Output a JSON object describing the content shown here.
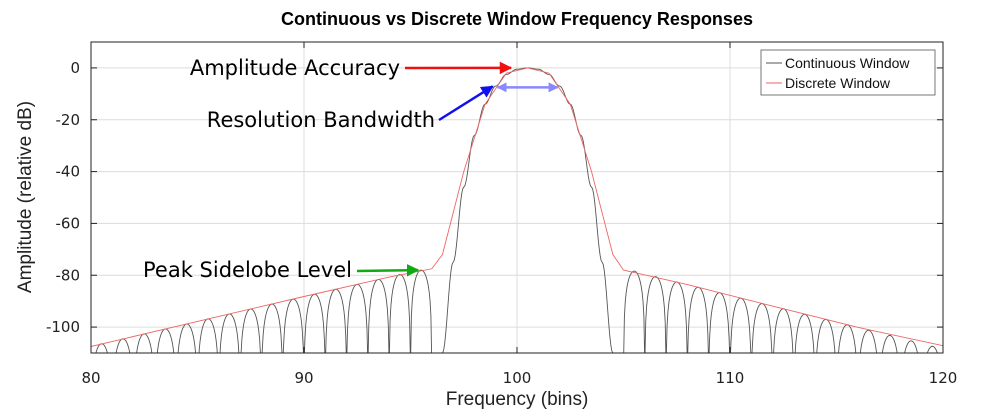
{
  "chart_data": {
    "type": "line",
    "title": "Continuous vs Discrete Window Frequency Responses",
    "xlabel": "Frequency (bins)",
    "ylabel": "Amplitude (relative dB)",
    "xlim": [
      80,
      120
    ],
    "ylim": [
      -110,
      10
    ],
    "xticks": [
      80,
      90,
      100,
      110,
      120
    ],
    "yticks": [
      0,
      -20,
      -40,
      -60,
      -80,
      -100
    ],
    "grid": true,
    "legend_position": "top-right",
    "series": [
      {
        "name": "Continuous Window",
        "color": "#555555",
        "description_points": {
          "x": [
            96.5,
            97.0,
            97.5,
            98.0,
            98.5,
            99.0,
            99.5,
            100.0,
            100.5,
            101.0,
            101.5,
            102.0,
            102.5,
            103.0,
            103.5,
            104.0,
            104.5
          ],
          "y": [
            -110,
            -75,
            -46,
            -26,
            -14,
            -7,
            -2.5,
            -0.5,
            0,
            -0.5,
            -2.5,
            -7,
            -14,
            -26,
            -46,
            -75,
            -110
          ]
        },
        "sidelobe_peaks": {
          "x": [
            80.5,
            81.5,
            82.5,
            83.5,
            84.5,
            85.5,
            86.5,
            87.5,
            88.5,
            89.5,
            90.5,
            91.5,
            92.5,
            93.5,
            94.5,
            95.5,
            105.5,
            106.5,
            107.5,
            108.5,
            109.5,
            110.5,
            111.5,
            112.5,
            113.5,
            114.5,
            115.5,
            116.5,
            117.5,
            118.5,
            119.5
          ],
          "y": [
            -106.4,
            -104.5,
            -102.6,
            -100.7,
            -98.8,
            -96.8,
            -94.9,
            -93.0,
            -91.1,
            -89.2,
            -87.3,
            -85.4,
            -83.5,
            -81.6,
            -79.7,
            -78.0,
            -78.4,
            -80.5,
            -82.6,
            -84.6,
            -86.7,
            -88.8,
            -90.9,
            -92.9,
            -95.0,
            -97.0,
            -99.1,
            -101.2,
            -103.2,
            -105.3,
            -107.4
          ]
        }
      },
      {
        "name": "Discrete Window",
        "color": "#ee6666",
        "x": [
          80.0,
          85.0,
          90.0,
          94.0,
          96.0,
          96.5,
          97.5,
          98.5,
          99.5,
          100.5,
          101.5,
          102.5,
          103.5,
          104.5,
          105.0,
          108.0,
          112.0,
          116.0,
          120.0
        ],
        "y": [
          -107.5,
          -97.8,
          -88.2,
          -80.7,
          -77.5,
          -72.0,
          -40.0,
          -14.0,
          -2.0,
          0.0,
          -2.0,
          -14.0,
          -40.0,
          -72.0,
          -78.0,
          -83.6,
          -91.9,
          -100.1,
          -107.2
        ]
      }
    ],
    "annotations": [
      {
        "text": "Amplitude Accuracy",
        "arrow_color": "#ee1111",
        "points_to": [
          100.0,
          0.0
        ]
      },
      {
        "text": "Resolution Bandwidth",
        "arrow_color": "#1111ee",
        "points_to": [
          99.0,
          -7.5
        ]
      },
      {
        "text": "Peak Sidelobe Level",
        "arrow_color": "#11aa11",
        "points_to": [
          95.5,
          -78.0
        ]
      }
    ],
    "bandwidth_marker": {
      "x": [
        99.0,
        102.0
      ],
      "y": -7.5,
      "color": "#8888ff"
    }
  }
}
